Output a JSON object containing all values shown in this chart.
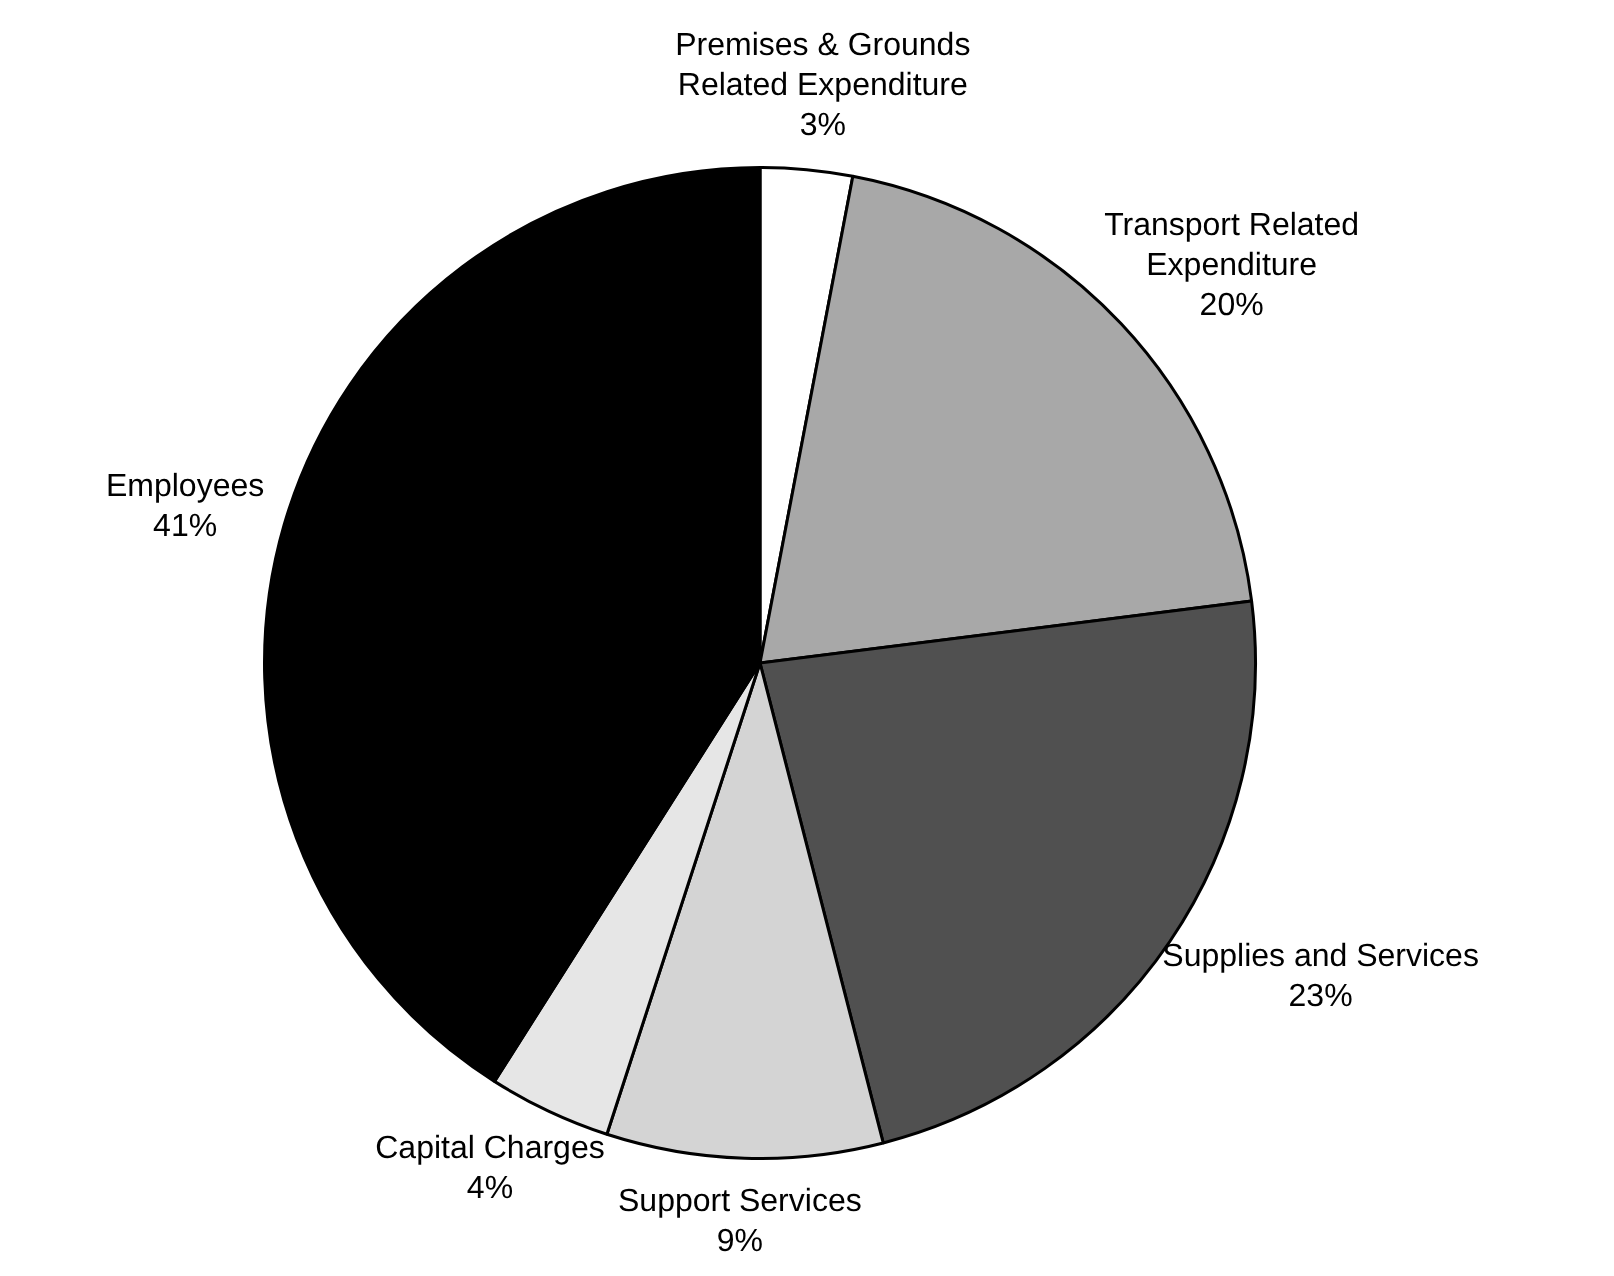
{
  "chart_data": {
    "type": "pie",
    "categories": [
      "Premises & Grounds Related Expenditure",
      "Transport Related Expenditure",
      "Supplies and Services",
      "Support Services",
      "Capital Charges",
      "Employees"
    ],
    "values": [
      3,
      20,
      23,
      9,
      4,
      41
    ],
    "value_labels": [
      "3%",
      "20%",
      "23%",
      "9%",
      "4%",
      "41%"
    ],
    "colors": [
      "#ffffff",
      "#a8a8a8",
      "#505050",
      "#d4d4d4",
      "#e6e6e6",
      "#000000"
    ],
    "legend": false
  }
}
